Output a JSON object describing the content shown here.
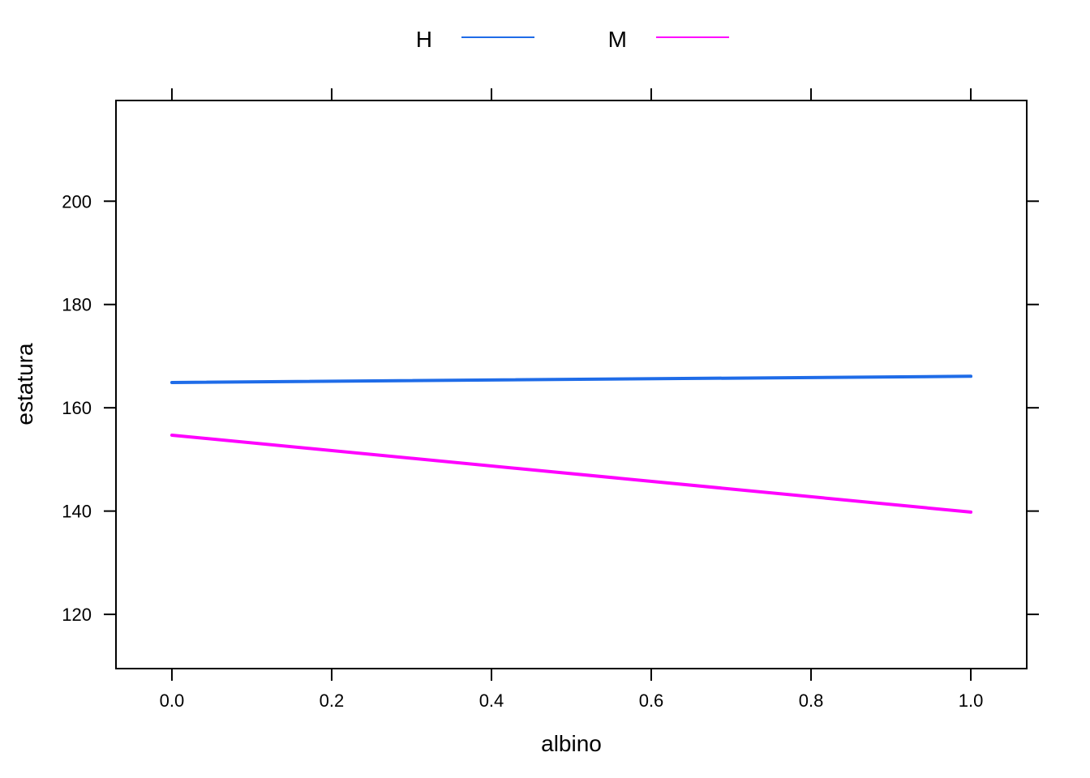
{
  "chart_data": {
    "type": "line",
    "xlabel": "albino",
    "ylabel": "estatura",
    "xlim": [
      -0.07,
      1.07
    ],
    "ylim": [
      109.5,
      219.5
    ],
    "x_ticks": [
      0.0,
      0.2,
      0.4,
      0.6,
      0.8,
      1.0
    ],
    "x_tick_labels": [
      "0.0",
      "0.2",
      "0.4",
      "0.6",
      "0.8",
      "1.0"
    ],
    "y_ticks": [
      120,
      140,
      160,
      180,
      200
    ],
    "y_tick_labels": [
      "120",
      "140",
      "160",
      "180",
      "200"
    ],
    "legend_position": "top",
    "grid": false,
    "series": [
      {
        "name": "H",
        "color": "#1f6ce8",
        "x": [
          0.0,
          1.0
        ],
        "y": [
          164.9,
          166.1
        ]
      },
      {
        "name": "M",
        "color": "#ff00ff",
        "x": [
          0.0,
          1.0
        ],
        "y": [
          154.7,
          139.8
        ]
      }
    ]
  }
}
